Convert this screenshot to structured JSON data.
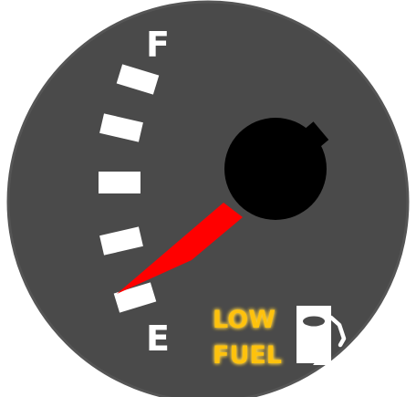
{
  "gauge": {
    "full_label": "F",
    "empty_label": "E",
    "fuel_level": 0.0,
    "tick_count": 5
  },
  "warning": {
    "line1": "LOW",
    "line2": "FUEL",
    "color": "#ffc20e",
    "glow_color": "#ffd23f",
    "icon": "fuel-pump-icon"
  },
  "colors": {
    "dial_face": "#4a4a4a",
    "dial_rim": "#555555",
    "needle": "#ff0000",
    "hub": "#000000",
    "markings": "#ffffff"
  }
}
